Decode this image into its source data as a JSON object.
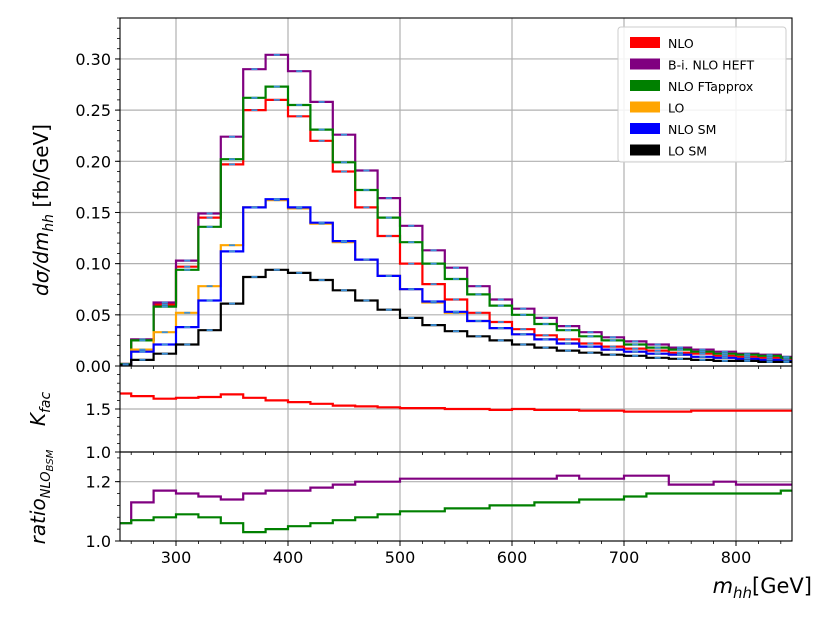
{
  "chart_data": [
    {
      "panel": "main",
      "type": "line",
      "step": true,
      "xlim": [
        250,
        850
      ],
      "ylim": [
        0,
        0.34
      ],
      "ylabel": "dσ/dm_hh [fb/GeV]",
      "yticks": [
        "0.00",
        "0.05",
        "0.10",
        "0.15",
        "0.20",
        "0.25",
        "0.30"
      ],
      "grid": true,
      "legend_position": "top-right",
      "bin_edges": [
        250,
        260,
        280,
        300,
        320,
        340,
        360,
        380,
        400,
        420,
        440,
        460,
        480,
        500,
        520,
        540,
        560,
        580,
        600,
        620,
        640,
        660,
        680,
        700,
        720,
        740,
        760,
        780,
        800,
        820,
        840,
        850
      ],
      "series": [
        {
          "name": "NLO",
          "color": "#ff0000",
          "values": [
            0.002,
            0.025,
            0.06,
            0.097,
            0.145,
            0.197,
            0.25,
            0.26,
            0.244,
            0.22,
            0.19,
            0.155,
            0.127,
            0.1,
            0.08,
            0.065,
            0.052,
            0.043,
            0.036,
            0.03,
            0.026,
            0.022,
            0.019,
            0.017,
            0.015,
            0.013,
            0.012,
            0.01,
            0.009,
            0.008,
            0.007
          ]
        },
        {
          "name": "B-i. NLO HEFT",
          "color": "#800080",
          "values": [
            0.002,
            0.026,
            0.062,
            0.103,
            0.149,
            0.224,
            0.29,
            0.304,
            0.288,
            0.258,
            0.226,
            0.191,
            0.164,
            0.137,
            0.113,
            0.096,
            0.078,
            0.065,
            0.056,
            0.047,
            0.039,
            0.033,
            0.028,
            0.024,
            0.021,
            0.018,
            0.016,
            0.014,
            0.012,
            0.011,
            0.009
          ]
        },
        {
          "name": "NLO FTapprox",
          "color": "#008000",
          "values": [
            0.002,
            0.025,
            0.058,
            0.094,
            0.136,
            0.202,
            0.262,
            0.273,
            0.255,
            0.231,
            0.199,
            0.172,
            0.145,
            0.121,
            0.1,
            0.085,
            0.07,
            0.059,
            0.05,
            0.041,
            0.035,
            0.029,
            0.025,
            0.021,
            0.018,
            0.016,
            0.014,
            0.012,
            0.011,
            0.01,
            0.008
          ]
        },
        {
          "name": "LO",
          "color": "#ffa500",
          "values": [
            0.001,
            0.016,
            0.033,
            0.052,
            0.078,
            0.118,
            0.155,
            0.162,
            0.154,
            0.139,
            0.121,
            0.104,
            0.088,
            0.075,
            0.062,
            0.052,
            0.044,
            0.037,
            0.031,
            0.026,
            0.022,
            0.019,
            0.016,
            0.014,
            0.012,
            0.011,
            0.009,
            0.008,
            0.007,
            0.006,
            0.005
          ]
        },
        {
          "name": "NLO SM",
          "color": "#0000ff",
          "values": [
            0.001,
            0.014,
            0.021,
            0.038,
            0.064,
            0.112,
            0.155,
            0.163,
            0.155,
            0.14,
            0.122,
            0.104,
            0.088,
            0.075,
            0.063,
            0.053,
            0.044,
            0.037,
            0.031,
            0.026,
            0.022,
            0.019,
            0.016,
            0.014,
            0.012,
            0.011,
            0.009,
            0.008,
            0.007,
            0.006,
            0.005
          ]
        },
        {
          "name": "LO SM",
          "color": "#000000",
          "values": [
            0.001,
            0.006,
            0.012,
            0.021,
            0.035,
            0.061,
            0.087,
            0.094,
            0.091,
            0.084,
            0.074,
            0.064,
            0.055,
            0.047,
            0.04,
            0.034,
            0.029,
            0.025,
            0.021,
            0.018,
            0.015,
            0.013,
            0.011,
            0.01,
            0.008,
            0.007,
            0.006,
            0.005,
            0.005,
            0.004,
            0.004
          ]
        }
      ]
    },
    {
      "panel": "kfac",
      "type": "line",
      "step": true,
      "xlim": [
        250,
        850
      ],
      "ylim": [
        1.0,
        2.0
      ],
      "ylabel": "K_fac",
      "yticks": [
        "1.0",
        "1.5"
      ],
      "grid": true,
      "bin_edges": [
        250,
        260,
        280,
        300,
        320,
        340,
        360,
        380,
        400,
        420,
        440,
        460,
        480,
        500,
        520,
        540,
        560,
        580,
        600,
        620,
        640,
        660,
        680,
        700,
        720,
        740,
        760,
        780,
        800,
        820,
        840,
        850
      ],
      "series": [
        {
          "color": "#ff0000",
          "values": [
            1.68,
            1.65,
            1.62,
            1.63,
            1.64,
            1.67,
            1.63,
            1.6,
            1.58,
            1.56,
            1.54,
            1.53,
            1.52,
            1.51,
            1.51,
            1.5,
            1.5,
            1.49,
            1.5,
            1.49,
            1.49,
            1.48,
            1.48,
            1.47,
            1.47,
            1.47,
            1.48,
            1.48,
            1.48,
            1.48,
            1.48
          ]
        }
      ]
    },
    {
      "panel": "ratio",
      "type": "line",
      "step": true,
      "xlim": [
        250,
        850
      ],
      "ylim": [
        1.0,
        1.3
      ],
      "xlabel": "m_hh[GeV]",
      "ylabel": "ratio_NLO_BSM",
      "xticks": [
        300,
        400,
        500,
        600,
        700,
        800
      ],
      "yticks": [
        "1.0",
        "1.2"
      ],
      "grid": true,
      "bin_edges": [
        250,
        260,
        280,
        300,
        320,
        340,
        360,
        380,
        400,
        420,
        440,
        460,
        480,
        500,
        520,
        540,
        560,
        580,
        600,
        620,
        640,
        660,
        680,
        700,
        720,
        740,
        760,
        780,
        800,
        820,
        840,
        850
      ],
      "series": [
        {
          "color": "#800080",
          "values": [
            1.06,
            1.13,
            1.17,
            1.16,
            1.15,
            1.14,
            1.16,
            1.17,
            1.17,
            1.18,
            1.19,
            1.2,
            1.2,
            1.21,
            1.21,
            1.21,
            1.21,
            1.21,
            1.21,
            1.21,
            1.22,
            1.21,
            1.21,
            1.22,
            1.22,
            1.19,
            1.19,
            1.2,
            1.19,
            1.19,
            1.19
          ]
        },
        {
          "color": "#008000",
          "values": [
            1.06,
            1.07,
            1.08,
            1.09,
            1.08,
            1.06,
            1.03,
            1.04,
            1.05,
            1.06,
            1.07,
            1.08,
            1.09,
            1.1,
            1.1,
            1.11,
            1.11,
            1.12,
            1.12,
            1.13,
            1.13,
            1.14,
            1.14,
            1.15,
            1.16,
            1.16,
            1.16,
            1.16,
            1.16,
            1.16,
            1.17
          ]
        }
      ]
    }
  ]
}
